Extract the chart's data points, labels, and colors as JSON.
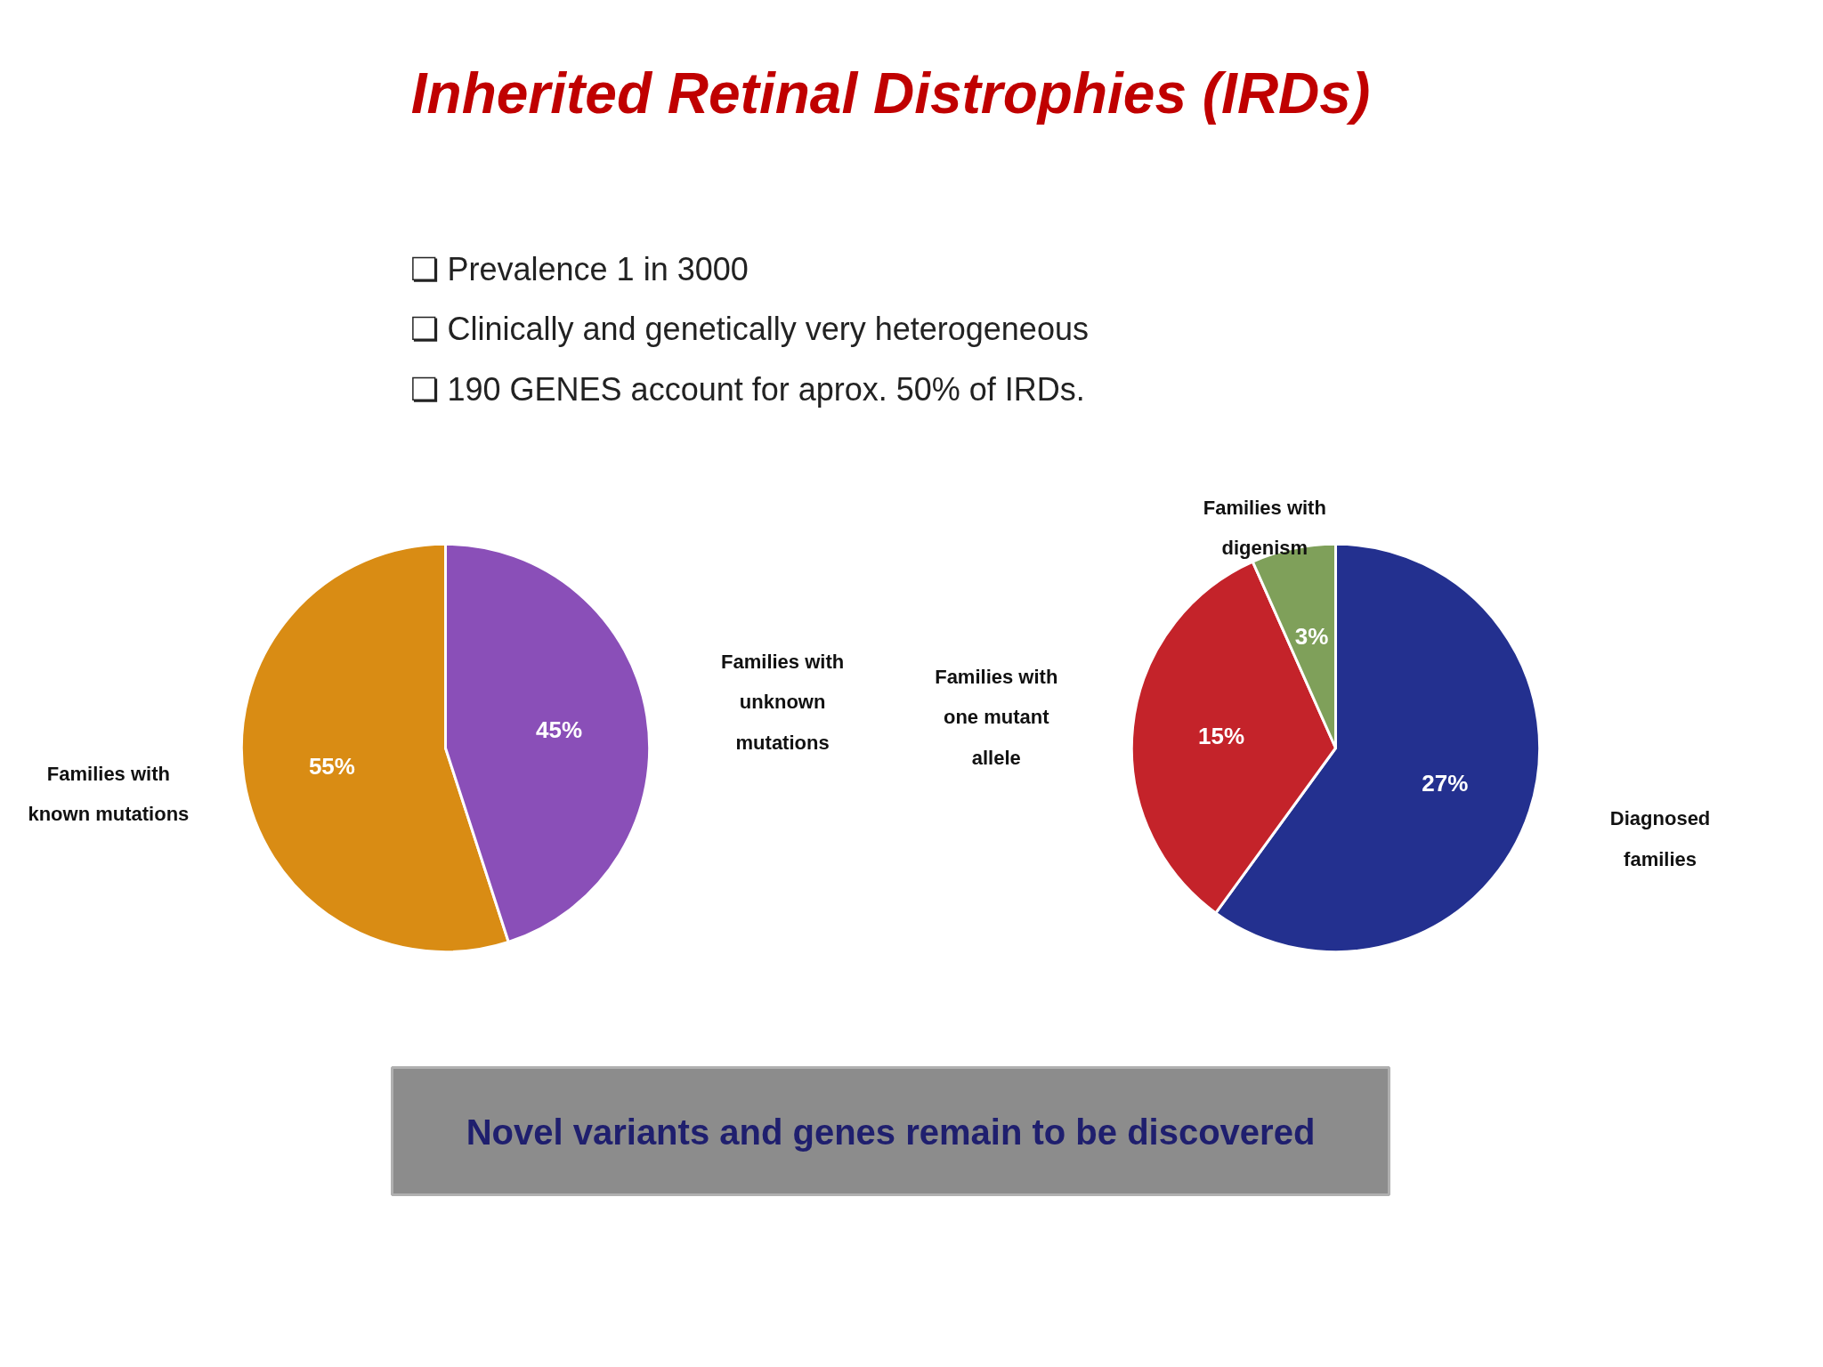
{
  "chart_data": [
    {
      "type": "pie",
      "title": "Inherited Retinal Distrophies (IRDs)",
      "annotations": [
        "❏  Prevalence 1 in 3000",
        "❏  Clinically and genetically very heterogeneous",
        "❏  190 GENES  account for aprox. 50% of IRDs.",
        "Novel variants and genes remain to be discovered"
      ],
      "categories": [
        "Families with known mutations",
        "Families with unknown mutations"
      ],
      "values": [
        55,
        45
      ],
      "colors": [
        "#d98c14",
        "#8a4fb8"
      ],
      "value_labels": [
        "55%",
        "45%"
      ]
    },
    {
      "type": "pie",
      "categories": [
        "Diagnosed families",
        "Families with one mutant allele",
        "Families with digenism"
      ],
      "values": [
        27,
        15,
        3
      ],
      "colors": [
        "#23308f",
        "#c4232a",
        "#7fa05a"
      ],
      "value_labels": [
        "27%",
        "15%",
        "3%"
      ]
    }
  ]
}
